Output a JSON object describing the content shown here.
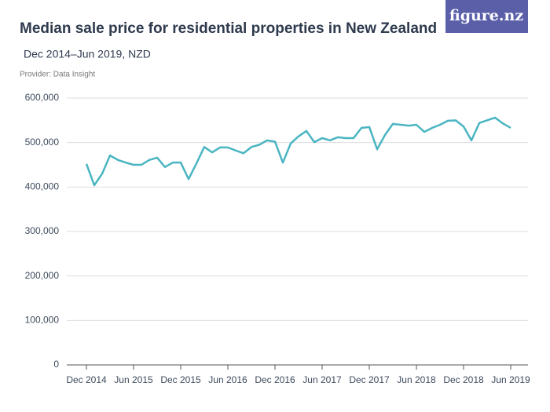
{
  "logo": "figure.nz",
  "chart_data": {
    "type": "line",
    "title": "Median sale price for residential properties in New Zealand",
    "subtitle": "Dec 2014–Jun 2019, NZD",
    "provider": "Provider: Data Insight",
    "categories": [
      "Dec 2014",
      null,
      null,
      null,
      null,
      null,
      "Jun 2015",
      null,
      null,
      null,
      null,
      null,
      "Dec 2015",
      null,
      null,
      null,
      null,
      null,
      "Jun 2016",
      null,
      null,
      null,
      null,
      null,
      "Dec 2016",
      null,
      null,
      null,
      null,
      null,
      "Jun 2017",
      null,
      null,
      null,
      null,
      null,
      "Dec 2017",
      null,
      null,
      null,
      null,
      null,
      "Jun 2018",
      null,
      null,
      null,
      null,
      null,
      "Dec 2018",
      null,
      null,
      null,
      null,
      null,
      "Jun 2019"
    ],
    "values": [
      452000,
      404000,
      430000,
      471000,
      461000,
      455000,
      450000,
      450000,
      461000,
      466000,
      445000,
      455000,
      455000,
      418000,
      453000,
      490000,
      478000,
      489000,
      489000,
      482000,
      476000,
      490000,
      495000,
      505000,
      502000,
      455000,
      498000,
      514000,
      526000,
      501000,
      510000,
      505000,
      512000,
      510000,
      510000,
      533000,
      535000,
      485000,
      517000,
      542000,
      540000,
      538000,
      540000,
      524000,
      533000,
      540000,
      549000,
      550000,
      536000,
      505000,
      544000,
      550000,
      556000,
      543000,
      533000
    ],
    "color": "#4ab5c1",
    "ylim": [
      0,
      600000
    ],
    "yticks": [
      0,
      {
        "value": 100000,
        "label": "100,000"
      },
      {
        "value": 200000,
        "label": "200,000"
      },
      {
        "value": 300000,
        "label": "300,000"
      },
      {
        "value": 400000,
        "label": "400,000"
      },
      {
        "value": 500000,
        "label": "500,000"
      },
      {
        "value": 600000,
        "label": "600,000"
      }
    ],
    "grid": true
  }
}
